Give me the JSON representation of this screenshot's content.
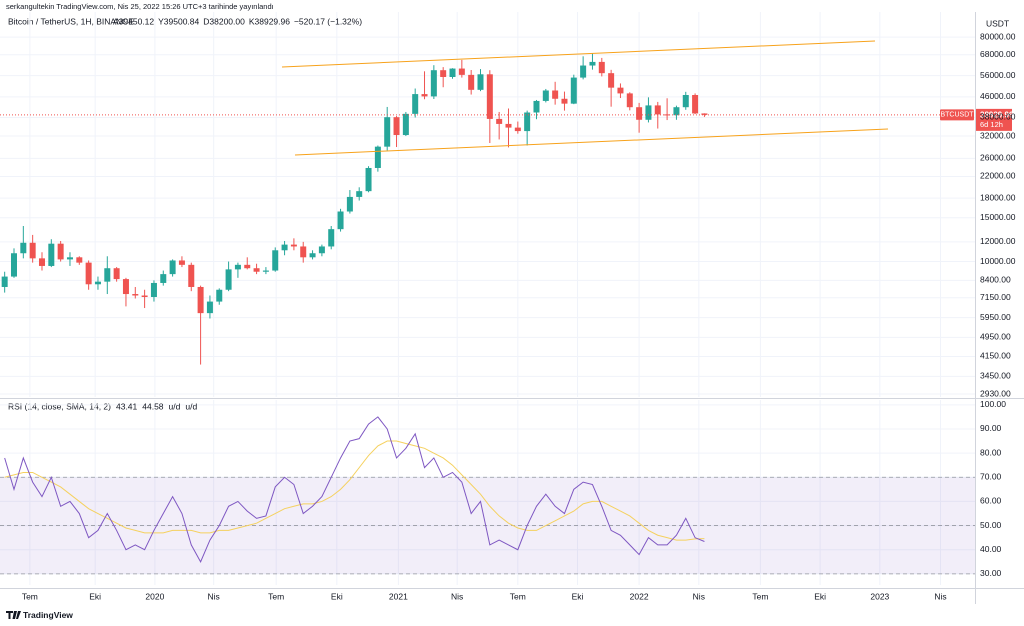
{
  "header": {
    "publisher": "serkangultekin TradingView.com, Nis 25, 2022 15:26 UTC+3 tarihinde yayınlandı",
    "footer_logo": "TradingView"
  },
  "chart_data": [
    {
      "type": "candlestick",
      "title": "Bitcoin / TetherUS, 1H, BINANCE",
      "legend_values": [
        "A39450.12",
        "Y39500.84",
        "D38200.00",
        "K38929.96",
        "−520.17 (−1.32%)"
      ],
      "symbol_tag": "BTCUSDT",
      "countdown": "6d 12h",
      "currency": "USDT",
      "up_color": "#26a69a",
      "down_color": "#ef5350",
      "log_scale": true,
      "grid": true,
      "open": [
        7900,
        8700,
        10800,
        11900,
        10300,
        9600,
        11800,
        10200,
        10400,
        9900,
        8100,
        8300,
        9400,
        8500,
        7400,
        7300,
        7200,
        8200,
        8900,
        10100,
        9700,
        7900,
        6200,
        6900,
        7700,
        9300,
        9700,
        9400,
        9100,
        9200,
        11100,
        11700,
        11500,
        10400,
        10800,
        11500,
        13500,
        15900,
        18200,
        19200,
        23800,
        29000,
        38100,
        32300,
        39300,
        47200,
        46200,
        58900,
        55300,
        59800,
        56400,
        49100,
        56700,
        37500,
        35800,
        34600,
        33500,
        39800,
        44300,
        48800,
        45200,
        43200,
        55000,
        61500,
        63600,
        57300,
        50100,
        47500,
        41800,
        37200,
        42500,
        39100,
        38800,
        41800,
        46800,
        39450.12
      ],
      "high": [
        9100,
        11300,
        13900,
        12800,
        10900,
        12300,
        12100,
        10900,
        10500,
        10100,
        8700,
        10500,
        9500,
        8600,
        7900,
        7700,
        8400,
        9200,
        10200,
        10500,
        9900,
        8000,
        7300,
        7800,
        10000,
        9900,
        10400,
        9800,
        9500,
        11400,
        12100,
        12400,
        12000,
        11100,
        11700,
        13900,
        16300,
        19400,
        19900,
        24200,
        29300,
        41900,
        38500,
        40000,
        49700,
        58300,
        61700,
        60600,
        60000,
        64800,
        59000,
        59500,
        58900,
        40000,
        41300,
        36600,
        40500,
        44700,
        49500,
        52900,
        48300,
        56500,
        67000,
        69000,
        66000,
        59100,
        52100,
        48000,
        43500,
        45800,
        43900,
        45400,
        42400,
        48200,
        47500,
        39500.84
      ],
      "low": [
        7500,
        8600,
        10300,
        9900,
        9200,
        9500,
        10000,
        9600,
        9700,
        7700,
        7700,
        7400,
        8300,
        6600,
        7100,
        6500,
        6900,
        8000,
        8700,
        9500,
        7600,
        3850,
        5900,
        6700,
        7600,
        8600,
        9300,
        8900,
        8900,
        9100,
        10600,
        11100,
        9900,
        10200,
        10500,
        11200,
        13200,
        15600,
        17600,
        19000,
        23000,
        28000,
        28900,
        32000,
        38000,
        45000,
        45100,
        50300,
        54400,
        55000,
        47000,
        48500,
        30000,
        31000,
        28800,
        32700,
        29300,
        37400,
        43700,
        42800,
        40500,
        43000,
        54100,
        59200,
        55600,
        42000,
        45500,
        40600,
        33000,
        36300,
        34300,
        37100,
        37200,
        40800,
        39200,
        38200
      ],
      "close": [
        8700,
        10800,
        11900,
        10300,
        9600,
        11800,
        10200,
        10400,
        9900,
        8100,
        8300,
        9400,
        8500,
        7400,
        7300,
        7200,
        8200,
        8900,
        10100,
        9700,
        7900,
        6200,
        6900,
        7700,
        9300,
        9700,
        9400,
        9100,
        9200,
        11100,
        11700,
        11500,
        10400,
        10800,
        11500,
        13500,
        15900,
        18200,
        19200,
        23800,
        29000,
        38100,
        32300,
        39300,
        47200,
        46200,
        58900,
        55300,
        59800,
        56400,
        49100,
        56700,
        37500,
        35800,
        34600,
        33500,
        39800,
        44300,
        48800,
        45200,
        43200,
        55000,
        61500,
        63600,
        57300,
        50100,
        47500,
        41800,
        37200,
        42500,
        39100,
        38800,
        41800,
        46800,
        39450.12,
        38929.96
      ],
      "xlim": [
        -0.5,
        104
      ],
      "xticks": [
        {
          "value": 2.7,
          "label": "Tem"
        },
        {
          "value": 9.7,
          "label": "Eki"
        },
        {
          "value": 16.1,
          "label": "2020"
        },
        {
          "value": 22.4,
          "label": "Nis"
        },
        {
          "value": 29.1,
          "label": "Tem"
        },
        {
          "value": 35.6,
          "label": "Eki"
        },
        {
          "value": 42.2,
          "label": "2021"
        },
        {
          "value": 48.5,
          "label": "Nis"
        },
        {
          "value": 55.0,
          "label": "Tem"
        },
        {
          "value": 61.4,
          "label": "Eki"
        },
        {
          "value": 68.0,
          "label": "2022"
        },
        {
          "value": 74.4,
          "label": "Nis"
        },
        {
          "value": 81.0,
          "label": "Tem"
        },
        {
          "value": 87.4,
          "label": "Eki"
        },
        {
          "value": 93.8,
          "label": "2023"
        },
        {
          "value": 100.3,
          "label": "Nis"
        }
      ],
      "ylim": [
        2850,
        101000
      ],
      "yticks": [
        {
          "value": 80000,
          "label": "80000.00"
        },
        {
          "value": 68000,
          "label": "68000.00"
        },
        {
          "value": 56000,
          "label": "56000.00"
        },
        {
          "value": 46000,
          "label": "46000.00"
        },
        {
          "value": 38000,
          "label": "38000.00"
        },
        {
          "value": 32000,
          "label": "32000.00"
        },
        {
          "value": 26000,
          "label": "26000.00"
        },
        {
          "value": 22000,
          "label": "22000.00"
        },
        {
          "value": 18000,
          "label": "18000.00"
        },
        {
          "value": 15000,
          "label": "15000.00"
        },
        {
          "value": 12000,
          "label": "12000.00"
        },
        {
          "value": 10000,
          "label": "10000.00"
        },
        {
          "value": 8400,
          "label": "8400.00"
        },
        {
          "value": 7150,
          "label": "7150.00"
        },
        {
          "value": 5950,
          "label": "5950.00"
        },
        {
          "value": 4950,
          "label": "4950.00"
        },
        {
          "value": 4150,
          "label": "4150.00"
        },
        {
          "value": 3450,
          "label": "3450.00"
        },
        {
          "value": 2930,
          "label": "2930.00"
        }
      ]
    },
    {
      "type": "line",
      "title": "RSI (14, close, SMA, 14, 2)",
      "extra_labels": [
        "u/d",
        "u/d"
      ],
      "grid": true,
      "band_color": "rgba(126,87,194,0.1)",
      "levels": [
        30,
        50,
        70
      ],
      "series": [
        {
          "color": "#7e57c2",
          "values": [
            78,
            65,
            78,
            68,
            62,
            70,
            58,
            60,
            55,
            45,
            48,
            55,
            48,
            40,
            42,
            40,
            48,
            55,
            62,
            55,
            42,
            35,
            44,
            50,
            58,
            60,
            56,
            53,
            54,
            66,
            70,
            67,
            55,
            58,
            62,
            70,
            78,
            85,
            86,
            92,
            95,
            90,
            78,
            82,
            88,
            74,
            78,
            70,
            72,
            68,
            55,
            60,
            42,
            44,
            42,
            40,
            50,
            58,
            63,
            58,
            55,
            65,
            68,
            67,
            58,
            48,
            46,
            42,
            38,
            45,
            42,
            42,
            46,
            53,
            45,
            43.41
          ]
        },
        {
          "color": "#f5d15f",
          "values": [
            70,
            71,
            72,
            72,
            70,
            68,
            66,
            63,
            60,
            57,
            55,
            53,
            51,
            49,
            48,
            47,
            47,
            47,
            48,
            48,
            48,
            47,
            47,
            48,
            48,
            49,
            50,
            51,
            53,
            55,
            57,
            58,
            59,
            59,
            60,
            62,
            65,
            69,
            74,
            79,
            83,
            85,
            85,
            84,
            83,
            82,
            80,
            78,
            75,
            71,
            67,
            63,
            58,
            54,
            51,
            49,
            48,
            48,
            50,
            52,
            54,
            56,
            59,
            60,
            60,
            58,
            56,
            54,
            51,
            48,
            46,
            45,
            44,
            44,
            44.5,
            44.58
          ]
        }
      ],
      "ylim": [
        25.4,
        102
      ],
      "yticks": [
        {
          "value": 100,
          "label": "100.00"
        },
        {
          "value": 90,
          "label": "90.00"
        },
        {
          "value": 80,
          "label": "80.00"
        },
        {
          "value": 70,
          "label": "70.00"
        },
        {
          "value": 60,
          "label": "60.00"
        },
        {
          "value": 50,
          "label": "50.00"
        },
        {
          "value": 40,
          "label": "40.00"
        },
        {
          "value": 30,
          "label": "30.00"
        }
      ]
    }
  ]
}
